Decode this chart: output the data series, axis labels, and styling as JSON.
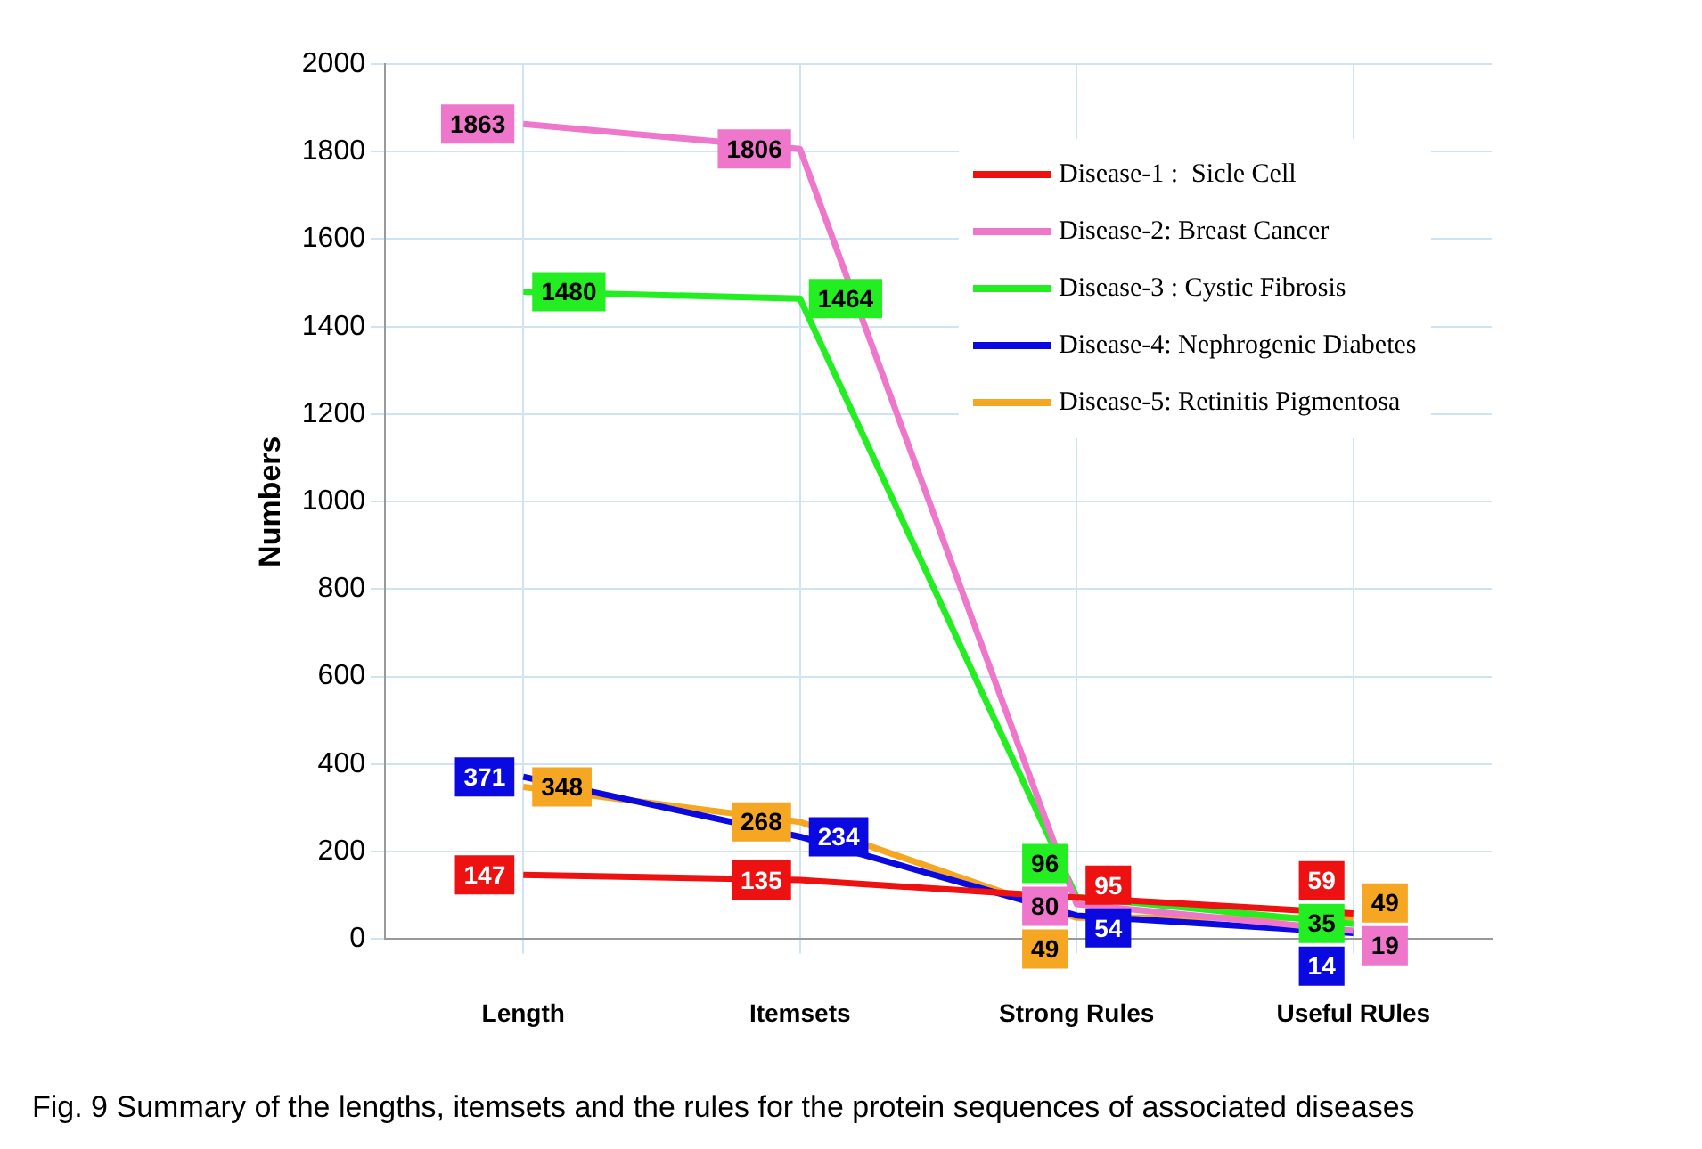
{
  "chart_data": {
    "type": "line",
    "ylabel": "Numbers",
    "categories": [
      "Length",
      "Itemsets",
      "Strong Rules",
      "Useful RUles"
    ],
    "series": [
      {
        "name": "Disease-1 :  Sicle Cell",
        "color": "#ee1111",
        "values": [
          147,
          135,
          95,
          59
        ]
      },
      {
        "name": "Disease-2: Breast Cancer",
        "color": "#ee77cc",
        "values": [
          1863,
          1806,
          80,
          19
        ]
      },
      {
        "name": "Disease-3 : Cystic Fibrosis",
        "color": "#22ee22",
        "values": [
          1480,
          1464,
          96,
          35
        ]
      },
      {
        "name": "Disease-4: Nephrogenic Diabetes",
        "color": "#0a0ae0",
        "values": [
          371,
          234,
          54,
          14
        ]
      },
      {
        "name": "Disease-5: Retinitis Pigmentosa",
        "color": "#f5a623",
        "values": [
          348,
          268,
          49,
          49
        ]
      }
    ],
    "ylim": [
      0,
      2000
    ],
    "yticks": [
      0,
      200,
      400,
      600,
      800,
      1000,
      1200,
      1400,
      1600,
      1800,
      2000
    ],
    "grid": true,
    "legend": "top right",
    "marker": "none",
    "line_style": "solid",
    "data_labels": true,
    "annotations": [
      "Fig. 9  Summary of the lengths, itemsets and the rules for the protein sequences of associated diseases"
    ]
  }
}
